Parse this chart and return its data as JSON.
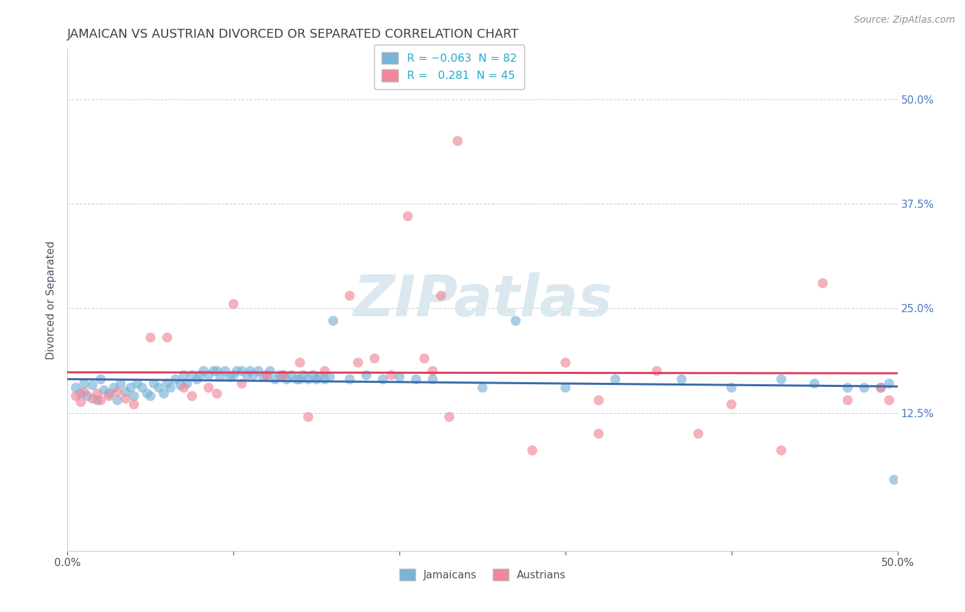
{
  "title": "JAMAICAN VS AUSTRIAN DIVORCED OR SEPARATED CORRELATION CHART",
  "source": "Source: ZipAtlas.com",
  "ylabel": "Divorced or Separated",
  "xlim": [
    0.0,
    0.5
  ],
  "ylim": [
    -0.04,
    0.56
  ],
  "yticks": [
    0.125,
    0.25,
    0.375,
    0.5
  ],
  "ytick_labels": [
    "12.5%",
    "25.0%",
    "37.5%",
    "50.0%"
  ],
  "jamaicans_color": "#7ab3d8",
  "austrians_color": "#f08898",
  "jamaicans_line_color": "#3a6aaa",
  "austrians_line_color": "#d84060",
  "watermark": "ZIPatlas",
  "watermark_color": "#dce8f0",
  "background_color": "#ffffff",
  "grid_color": "#cccccc",
  "title_color": "#404040",
  "axis_label_color": "#505060",
  "right_tick_color": "#4a78c0",
  "jamaicans_x": [
    0.005,
    0.008,
    0.01,
    0.012,
    0.015,
    0.018,
    0.02,
    0.022,
    0.025,
    0.028,
    0.03,
    0.032,
    0.035,
    0.038,
    0.04,
    0.042,
    0.045,
    0.048,
    0.05,
    0.052,
    0.055,
    0.058,
    0.06,
    0.062,
    0.065,
    0.068,
    0.07,
    0.072,
    0.075,
    0.078,
    0.08,
    0.082,
    0.085,
    0.088,
    0.09,
    0.092,
    0.095,
    0.098,
    0.1,
    0.102,
    0.105,
    0.108,
    0.11,
    0.112,
    0.115,
    0.118,
    0.12,
    0.122,
    0.125,
    0.128,
    0.13,
    0.132,
    0.135,
    0.138,
    0.14,
    0.142,
    0.145,
    0.148,
    0.15,
    0.152,
    0.155,
    0.158,
    0.16,
    0.17,
    0.18,
    0.19,
    0.2,
    0.21,
    0.22,
    0.25,
    0.27,
    0.3,
    0.33,
    0.37,
    0.4,
    0.43,
    0.45,
    0.47,
    0.48,
    0.49,
    0.495,
    0.498
  ],
  "jamaicans_y": [
    0.155,
    0.148,
    0.16,
    0.145,
    0.158,
    0.14,
    0.165,
    0.152,
    0.148,
    0.155,
    0.14,
    0.16,
    0.15,
    0.155,
    0.145,
    0.16,
    0.155,
    0.148,
    0.145,
    0.16,
    0.155,
    0.148,
    0.16,
    0.155,
    0.165,
    0.158,
    0.17,
    0.16,
    0.17,
    0.165,
    0.17,
    0.175,
    0.17,
    0.175,
    0.175,
    0.168,
    0.175,
    0.168,
    0.17,
    0.175,
    0.175,
    0.17,
    0.175,
    0.17,
    0.175,
    0.168,
    0.17,
    0.175,
    0.165,
    0.17,
    0.17,
    0.165,
    0.17,
    0.165,
    0.165,
    0.17,
    0.165,
    0.17,
    0.165,
    0.168,
    0.165,
    0.168,
    0.235,
    0.165,
    0.17,
    0.165,
    0.168,
    0.165,
    0.165,
    0.155,
    0.235,
    0.155,
    0.165,
    0.165,
    0.155,
    0.165,
    0.16,
    0.155,
    0.155,
    0.155,
    0.16,
    0.045
  ],
  "austrians_x": [
    0.005,
    0.008,
    0.01,
    0.015,
    0.018,
    0.02,
    0.025,
    0.03,
    0.035,
    0.04,
    0.05,
    0.06,
    0.07,
    0.075,
    0.085,
    0.09,
    0.1,
    0.105,
    0.12,
    0.13,
    0.14,
    0.145,
    0.155,
    0.17,
    0.175,
    0.185,
    0.195,
    0.205,
    0.215,
    0.225,
    0.235,
    0.3,
    0.32,
    0.355,
    0.38,
    0.4,
    0.43,
    0.455,
    0.47,
    0.49,
    0.495,
    0.22,
    0.23,
    0.28,
    0.32
  ],
  "austrians_y": [
    0.145,
    0.138,
    0.15,
    0.142,
    0.148,
    0.14,
    0.145,
    0.15,
    0.142,
    0.135,
    0.215,
    0.215,
    0.155,
    0.145,
    0.155,
    0.148,
    0.255,
    0.16,
    0.17,
    0.17,
    0.185,
    0.12,
    0.175,
    0.265,
    0.185,
    0.19,
    0.17,
    0.36,
    0.19,
    0.265,
    0.45,
    0.185,
    0.1,
    0.175,
    0.1,
    0.135,
    0.08,
    0.28,
    0.14,
    0.155,
    0.14,
    0.175,
    0.12,
    0.08,
    0.14
  ]
}
